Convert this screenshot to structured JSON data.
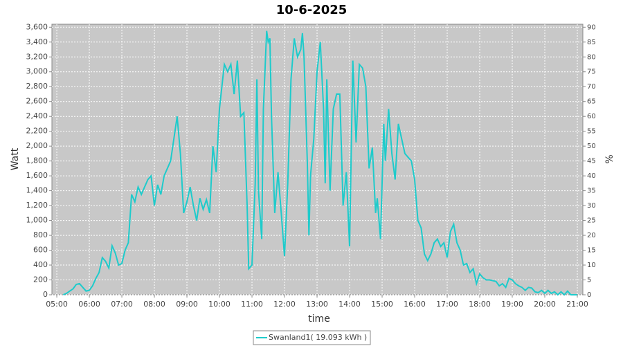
{
  "chart_data": {
    "type": "line",
    "title": "10-6-2025",
    "xlabel": "time",
    "ylabel": "Watt",
    "y2label": "%",
    "x": [
      5.2,
      5.3,
      5.4,
      5.5,
      5.6,
      5.7,
      5.8,
      5.9,
      6.0,
      6.1,
      6.2,
      6.3,
      6.4,
      6.5,
      6.6,
      6.7,
      6.8,
      6.9,
      7.0,
      7.1,
      7.2,
      7.3,
      7.4,
      7.5,
      7.6,
      7.7,
      7.8,
      7.9,
      8.0,
      8.1,
      8.2,
      8.3,
      8.5,
      8.6,
      8.7,
      8.8,
      8.9,
      9.0,
      9.1,
      9.2,
      9.3,
      9.4,
      9.5,
      9.6,
      9.7,
      9.8,
      9.9,
      10.0,
      10.1,
      10.15,
      10.25,
      10.35,
      10.45,
      10.55,
      10.65,
      10.75,
      10.85,
      10.9,
      11.0,
      11.1,
      11.15,
      11.2,
      11.3,
      11.35,
      11.45,
      11.5,
      11.55,
      11.6,
      11.7,
      11.8,
      11.9,
      12.0,
      12.1,
      12.2,
      12.3,
      12.4,
      12.5,
      12.55,
      12.6,
      12.7,
      12.75,
      12.8,
      12.9,
      13.0,
      13.1,
      13.2,
      13.25,
      13.3,
      13.4,
      13.5,
      13.6,
      13.7,
      13.8,
      13.9,
      14.0,
      14.1,
      14.2,
      14.3,
      14.4,
      14.5,
      14.6,
      14.7,
      14.8,
      14.85,
      14.95,
      15.05,
      15.1,
      15.2,
      15.3,
      15.4,
      15.5,
      15.6,
      15.7,
      15.8,
      15.9,
      16.0,
      16.1,
      16.2,
      16.3,
      16.4,
      16.5,
      16.6,
      16.7,
      16.8,
      16.9,
      17.0,
      17.1,
      17.2,
      17.3,
      17.4,
      17.5,
      17.6,
      17.7,
      17.8,
      17.9,
      18.0,
      18.1,
      18.2,
      18.3,
      18.5,
      18.6,
      18.7,
      18.8,
      18.9,
      19.0,
      19.1,
      19.2,
      19.3,
      19.4,
      19.5,
      19.6,
      19.7,
      19.8,
      19.9,
      20.0,
      20.1,
      20.2,
      20.3,
      20.4,
      20.5,
      20.6,
      20.7,
      20.8,
      21.0
    ],
    "series": [
      {
        "name": "Swanland1( 19.093 kWh )",
        "color": "#1ecbcb",
        "values": [
          0,
          20,
          50,
          80,
          140,
          150,
          100,
          50,
          60,
          120,
          220,
          300,
          500,
          450,
          360,
          660,
          560,
          400,
          420,
          600,
          700,
          1350,
          1250,
          1450,
          1350,
          1450,
          1550,
          1600,
          1200,
          1480,
          1350,
          1600,
          1800,
          2100,
          2400,
          1900,
          1100,
          1250,
          1450,
          1200,
          1000,
          1300,
          1150,
          1280,
          1100,
          2000,
          1650,
          2500,
          2900,
          3100,
          3000,
          3100,
          2700,
          3150,
          2400,
          2450,
          1200,
          350,
          400,
          1500,
          2900,
          1400,
          750,
          2500,
          3550,
          3400,
          3450,
          2400,
          1100,
          1650,
          1100,
          520,
          1500,
          2900,
          3450,
          3200,
          3300,
          3520,
          3200,
          1800,
          800,
          1600,
          2100,
          3000,
          3400,
          2500,
          1500,
          2900,
          1400,
          2500,
          2700,
          2700,
          1200,
          1650,
          650,
          3150,
          2050,
          3100,
          3050,
          2800,
          1700,
          1980,
          1100,
          1300,
          750,
          2300,
          1800,
          2500,
          1900,
          1550,
          2300,
          2100,
          1900,
          1850,
          1800,
          1550,
          1000,
          900,
          550,
          460,
          550,
          700,
          750,
          650,
          700,
          500,
          850,
          950,
          700,
          600,
          400,
          420,
          300,
          350,
          150,
          280,
          230,
          200,
          200,
          180,
          120,
          150,
          100,
          220,
          200,
          150,
          120,
          100,
          60,
          100,
          90,
          40,
          30,
          60,
          20,
          60,
          20,
          40,
          0,
          40,
          0,
          50,
          0,
          0
        ]
      }
    ],
    "xlim": [
      4.85,
      21.17
    ],
    "xticks": [
      {
        "value": 5,
        "label": "05:00"
      },
      {
        "value": 6,
        "label": "06:00"
      },
      {
        "value": 7,
        "label": "07:00"
      },
      {
        "value": 8,
        "label": "08:00"
      },
      {
        "value": 9,
        "label": "09:00"
      },
      {
        "value": 10,
        "label": "10:00"
      },
      {
        "value": 11,
        "label": "11:00"
      },
      {
        "value": 12,
        "label": "12:00"
      },
      {
        "value": 13,
        "label": "13:00"
      },
      {
        "value": 14,
        "label": "14:00"
      },
      {
        "value": 15,
        "label": "15:00"
      },
      {
        "value": 16,
        "label": "16:00"
      },
      {
        "value": 17,
        "label": "17:00"
      },
      {
        "value": 18,
        "label": "18:00"
      },
      {
        "value": 19,
        "label": "19:00"
      },
      {
        "value": 20,
        "label": "20:00"
      },
      {
        "value": 21,
        "label": "21:00"
      }
    ],
    "ylim": [
      0,
      3640
    ],
    "yticks": [
      0,
      200,
      400,
      600,
      800,
      {
        "value": 1000,
        "label": "1,000"
      },
      {
        "value": 1200,
        "label": "1,200"
      },
      {
        "value": 1400,
        "label": "1,400"
      },
      {
        "value": 1600,
        "label": "1,600"
      },
      {
        "value": 1800,
        "label": "1,800"
      },
      {
        "value": 2000,
        "label": "2,000"
      },
      {
        "value": 2200,
        "label": "2,200"
      },
      {
        "value": 2400,
        "label": "2,400"
      },
      {
        "value": 2600,
        "label": "2,600"
      },
      {
        "value": 2800,
        "label": "2,800"
      },
      {
        "value": 3000,
        "label": "3,000"
      },
      {
        "value": 3200,
        "label": "3,200"
      },
      {
        "value": 3400,
        "label": "3,400"
      },
      {
        "value": 3600,
        "label": "3,600"
      }
    ],
    "y2lim": [
      0,
      91
    ],
    "y2ticks": [
      0,
      5,
      10,
      15,
      20,
      25,
      30,
      35,
      40,
      45,
      50,
      55,
      60,
      65,
      70,
      75,
      80,
      85,
      90
    ],
    "grid": true,
    "legend": "bottom"
  }
}
